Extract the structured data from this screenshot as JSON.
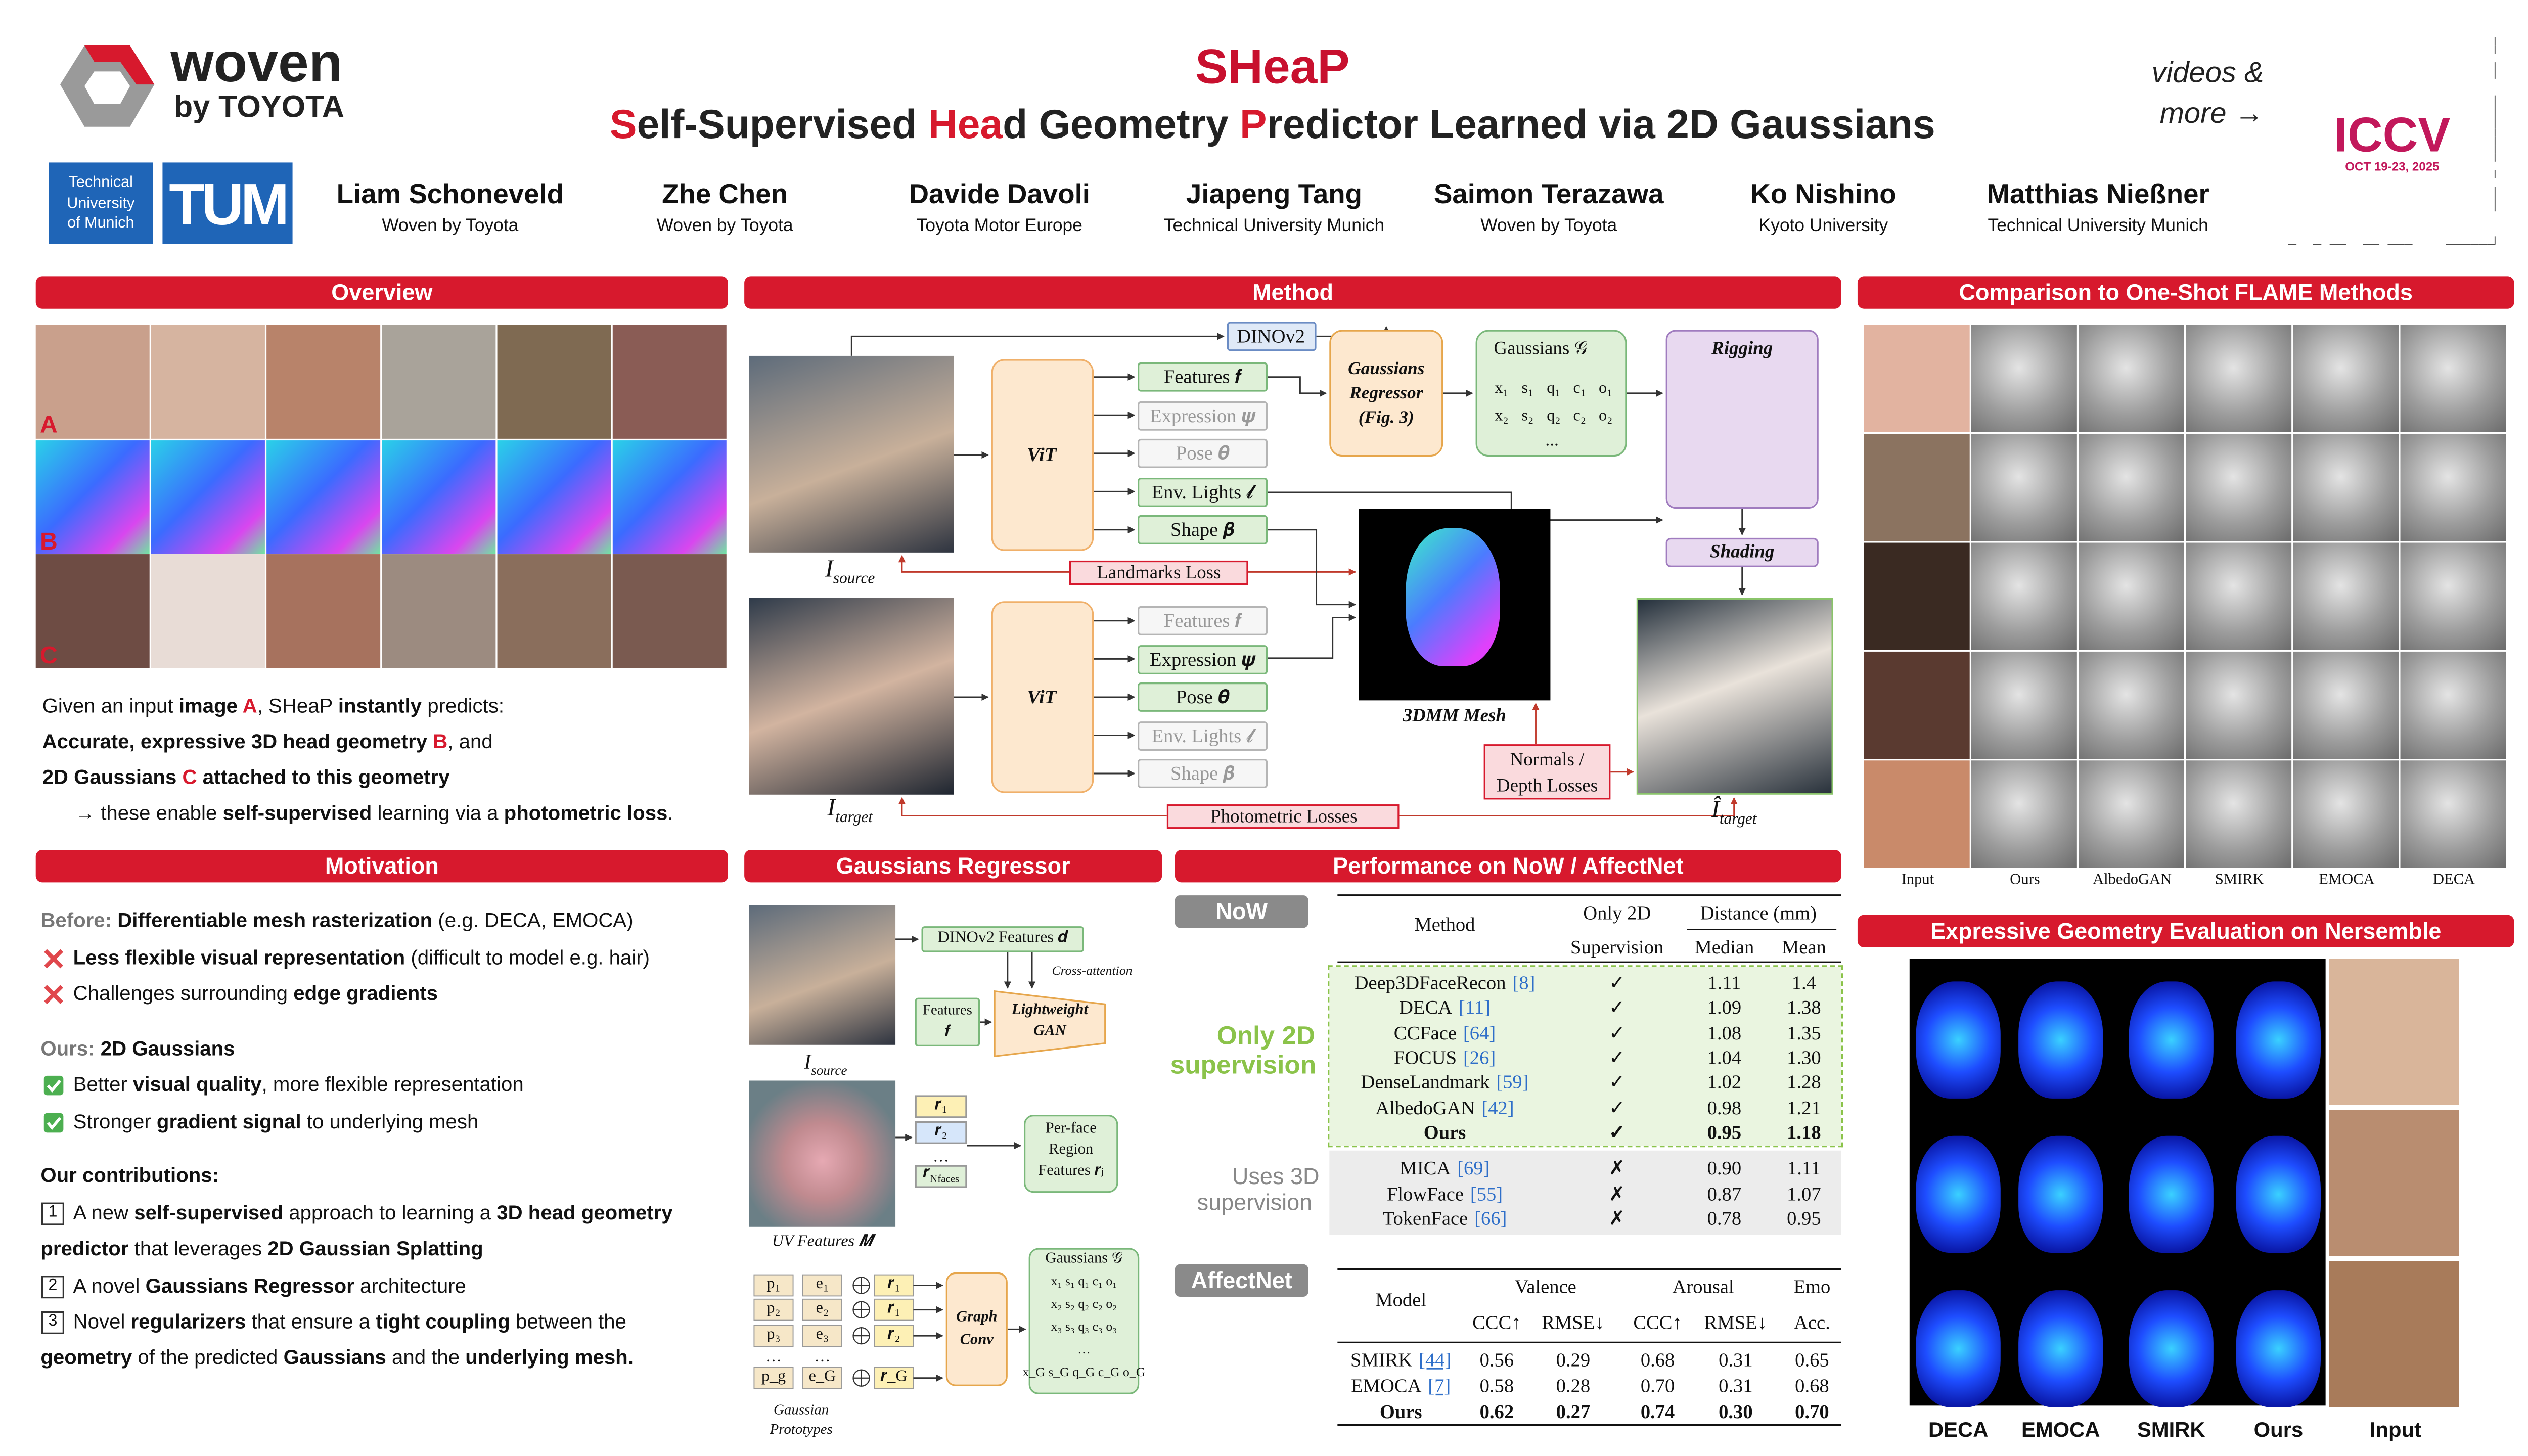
{
  "header": {
    "brand": "woven",
    "brand_sub": "by TOYOTA",
    "title": "SHeaP",
    "subtitle": [
      {
        "text": "S",
        "accent": true
      },
      "elf-Supervised ",
      {
        "text": "Hea",
        "accent": true
      },
      "d Geometry ",
      {
        "text": "P",
        "accent": true
      },
      "redictor Learned via 2D Gaussians"
    ],
    "tum_name": [
      "Technical",
      "University",
      "of Munich"
    ],
    "tum_logo": "TUM",
    "authors": [
      {
        "name": "Liam Schoneveld",
        "affiliation": "Woven by Toyota"
      },
      {
        "name": "Zhe Chen",
        "affiliation": "Woven by Toyota"
      },
      {
        "name": "Davide Davoli",
        "affiliation": "Toyota Motor Europe"
      },
      {
        "name": "Jiapeng Tang",
        "affiliation": "Technical University Munich"
      },
      {
        "name": "Saimon Terazawa",
        "affiliation": "Woven by Toyota"
      },
      {
        "name": "Ko Nishino",
        "affiliation": "Kyoto University"
      },
      {
        "name": "Matthias Nießner",
        "affiliation": "Technical University Munich"
      }
    ],
    "link": [
      "videos &",
      "more →"
    ],
    "venue": "ICCV",
    "venue_dates": "OCT 19-23, 2025"
  },
  "overview": {
    "heading": "Overview",
    "row_labels": [
      "A",
      "B",
      "C"
    ],
    "lines": [
      [
        "Given an input ",
        {
          "text": "image ",
          "bold": true
        },
        {
          "text": "A",
          "accent": true
        },
        ", SHeaP ",
        {
          "text": "instantly",
          "bold": true
        },
        " predicts:"
      ],
      [
        {
          "text": "Accurate, expressive 3D head geometry ",
          "bold": true
        },
        {
          "text": "B",
          "accent": true
        },
        ", and"
      ],
      [
        {
          "text": "2D Gaussians ",
          "bold": true
        },
        {
          "text": "C",
          "accent": true
        },
        {
          "text": " attached to this geometry",
          "bold": true
        }
      ],
      [
        "→ these enable ",
        {
          "text": "self-supervised",
          "bold": true
        },
        " learning via a ",
        {
          "text": "photometric loss",
          "bold": true
        },
        "."
      ]
    ]
  },
  "motivation": {
    "heading": "Motivation",
    "lines": [
      {
        "segments": [
          {
            "text": "Before:",
            "muted": true
          },
          " ",
          {
            "text": "Differentiable mesh rasterization",
            "bold": true
          },
          " (e.g. DECA, EMOCA)"
        ]
      },
      {
        "icon": "cross",
        "segments": [
          {
            "text": "Less flexible visual representation",
            "bold": true
          },
          " (difficult to model e.g. hair)"
        ]
      },
      {
        "icon": "cross",
        "segments": [
          "Challenges surrounding ",
          {
            "text": "edge gradients",
            "bold": true
          }
        ]
      },
      {
        "segments": [
          {
            "text": "Ours:",
            "muted": true
          },
          " ",
          {
            "text": "2D Gaussians",
            "bold": true
          }
        ]
      },
      {
        "icon": "check",
        "segments": [
          "Better ",
          {
            "text": "visual quality",
            "bold": true
          },
          ", more flexible representation"
        ]
      },
      {
        "icon": "check",
        "segments": [
          "Stronger ",
          {
            "text": "gradient signal",
            "bold": true
          },
          " to underlying mesh"
        ]
      },
      {
        "segments": [
          {
            "text": "Our contributions:",
            "bold": true
          }
        ]
      },
      {
        "number": "1",
        "segments": [
          "A new ",
          {
            "text": "self-supervised",
            "bold": true
          },
          " approach to learning a ",
          {
            "text": "3D head geometry",
            "bold": true
          }
        ]
      },
      {
        "segments": [
          {
            "text": "predictor",
            "bold": true
          },
          " that leverages ",
          {
            "text": "2D Gaussian Splatting",
            "bold": true
          }
        ]
      },
      {
        "number": "2",
        "segments": [
          "A novel ",
          {
            "text": "Gaussians Regressor",
            "bold": true
          },
          " architecture"
        ]
      },
      {
        "number": "3",
        "segments": [
          "Novel ",
          {
            "text": "regularizers",
            "bold": true
          },
          " that ensure a ",
          {
            "text": "tight coupling",
            "bold": true
          },
          " between the"
        ]
      },
      {
        "segments": [
          {
            "text": "geometry",
            "bold": true
          },
          " of the predicted ",
          {
            "text": "Gaussians",
            "bold": true
          },
          " and the ",
          {
            "text": "underlying mesh.",
            "bold": true
          }
        ]
      }
    ]
  },
  "method": {
    "heading": "Method",
    "dinov2": "DINOv2",
    "vit": "ViT",
    "outputs": [
      "Features 𝒇",
      "Expression 𝝍",
      "Pose 𝜽",
      "Env. Lights 𝓵",
      "Shape 𝜷"
    ],
    "top_active": [
      true,
      false,
      false,
      true,
      true
    ],
    "bottom_active": [
      false,
      true,
      true,
      false,
      false
    ],
    "regressor": [
      "Gaussians",
      "Regressor",
      "(Fig. 3)"
    ],
    "gaussians": "Gaussians 𝒢",
    "matrix": [
      [
        "x₁",
        "s₁",
        "q₁",
        "c₁",
        "o₁"
      ],
      [
        "x₂",
        "s₂",
        "q₂",
        "c₂",
        "o₂"
      ]
    ],
    "ellipsis": "...",
    "rigging": "Rigging",
    "shading": "Shading",
    "landmarks_loss": "Landmarks Loss",
    "mesh": "3DMM Mesh",
    "normals_loss": [
      "Normals /",
      "Depth Losses"
    ],
    "photometric_loss": "Photometric Losses",
    "source": [
      "I",
      "source"
    ],
    "target": [
      "I",
      "target"
    ],
    "render": [
      "Î",
      "target"
    ]
  },
  "regressor": {
    "heading": "Gaussians Regressor",
    "dino_features": "DINOv2 Features 𝒅",
    "cross_attention": "Cross-attention",
    "features": [
      "Features",
      "𝒇"
    ],
    "gan": [
      "Lightweight",
      "GAN"
    ],
    "source": [
      "I",
      "source"
    ],
    "uv": "UV Features 𝑴",
    "regions": [
      "𝒓₁",
      "𝒓₂",
      "…"
    ],
    "region_last": [
      "𝒓",
      "Nfaces"
    ],
    "per_face": [
      "Per-face",
      "Region",
      "Features 𝒓ⱼ"
    ],
    "prototype_rows": [
      [
        "p₁",
        "e₁",
        "𝒓₁"
      ],
      [
        "p₂",
        "e₂",
        "𝒓₁"
      ],
      [
        "p₃",
        "e₃",
        "𝒓₂"
      ],
      [
        "…",
        "…"
      ],
      [
        "p_g",
        "e_G",
        "𝒓_G"
      ]
    ],
    "graph_conv": [
      "Graph",
      "Conv"
    ],
    "gaussians": "Gaussians 𝒢",
    "out_rows": [
      "x₁ s₁ q₁ c₁ o₁",
      "x₂ s₂ q₂ c₂ o₂",
      "x₃ s₃ q₃ c₃ o₃",
      "…",
      "x_G s_G q_G c_G o_G"
    ],
    "prototypes": [
      "Gaussian",
      "Prototypes"
    ]
  },
  "performance": {
    "heading": "Performance on NoW / AffectNet",
    "now": {
      "tag": "NoW",
      "method_header": "Method",
      "supervision_header": [
        "Only 2D",
        "Supervision"
      ],
      "distance_header": "Distance (mm)",
      "median_header": "Median",
      "mean_header": "Mean",
      "group_2d": [
        "Only 2D",
        "supervision"
      ],
      "group_3d": [
        "Uses 3D",
        "supervision"
      ],
      "rows_2d": [
        {
          "method": "Deep3DFaceRecon",
          "cite": "[8]",
          "supervision": "✓",
          "median": "1.11",
          "mean": "1.4"
        },
        {
          "method": "DECA",
          "cite": "[11]",
          "supervision": "✓",
          "median": "1.09",
          "mean": "1.38"
        },
        {
          "method": "CCFace",
          "cite": "[64]",
          "supervision": "✓",
          "median": "1.08",
          "mean": "1.35"
        },
        {
          "method": "FOCUS",
          "cite": "[26]",
          "supervision": "✓",
          "median": "1.04",
          "mean": "1.30"
        },
        {
          "method": "DenseLandmark",
          "cite": "[59]",
          "supervision": "✓",
          "median": "1.02",
          "mean": "1.28"
        },
        {
          "method": "AlbedoGAN",
          "cite": "[42]",
          "supervision": "✓",
          "median": "0.98",
          "mean": "1.21"
        },
        {
          "method": "Ours",
          "supervision": "✓",
          "median": "0.95",
          "mean": "1.18",
          "bold": true
        }
      ],
      "rows_3d": [
        {
          "method": "MICA",
          "cite": "[69]",
          "supervision": "✗",
          "median": "0.90",
          "mean": "1.11"
        },
        {
          "method": "FlowFace",
          "cite": "[55]",
          "supervision": "✗",
          "median": "0.87",
          "mean": "1.07"
        },
        {
          "method": "TokenFace",
          "cite": "[66]",
          "supervision": "✗",
          "median": "0.78",
          "mean": "0.95"
        }
      ]
    },
    "affectnet": {
      "tag": "AffectNet",
      "model_header": "Model",
      "groups": [
        "Valence",
        "Arousal",
        "Emo"
      ],
      "columns": [
        "CCC↑",
        "RMSE↓",
        "CCC↑",
        "RMSE↓",
        "Acc."
      ],
      "rows": [
        {
          "model": "SMIRK",
          "cite": "[44]",
          "values": [
            "0.56",
            "0.29",
            "0.68",
            "0.31",
            "0.65"
          ]
        },
        {
          "model": "EMOCA",
          "cite": "[7]",
          "values": [
            "0.58",
            "0.28",
            "0.70",
            "0.31",
            "0.68"
          ]
        },
        {
          "model": "Ours",
          "values": [
            "0.62",
            "0.27",
            "0.74",
            "0.30",
            "0.70"
          ],
          "bold": true
        }
      ]
    }
  },
  "comparison": {
    "heading": "Comparison to One-Shot FLAME Methods",
    "columns": [
      "Input",
      "Ours",
      "AlbedoGAN",
      "SMIRK",
      "EMOCA",
      "DECA"
    ]
  },
  "expressive": {
    "heading": "Expressive Geometry Evaluation on Nersemble",
    "columns": [
      "DECA",
      "EMOCA",
      "SMIRK",
      "Ours",
      "Input"
    ]
  }
}
